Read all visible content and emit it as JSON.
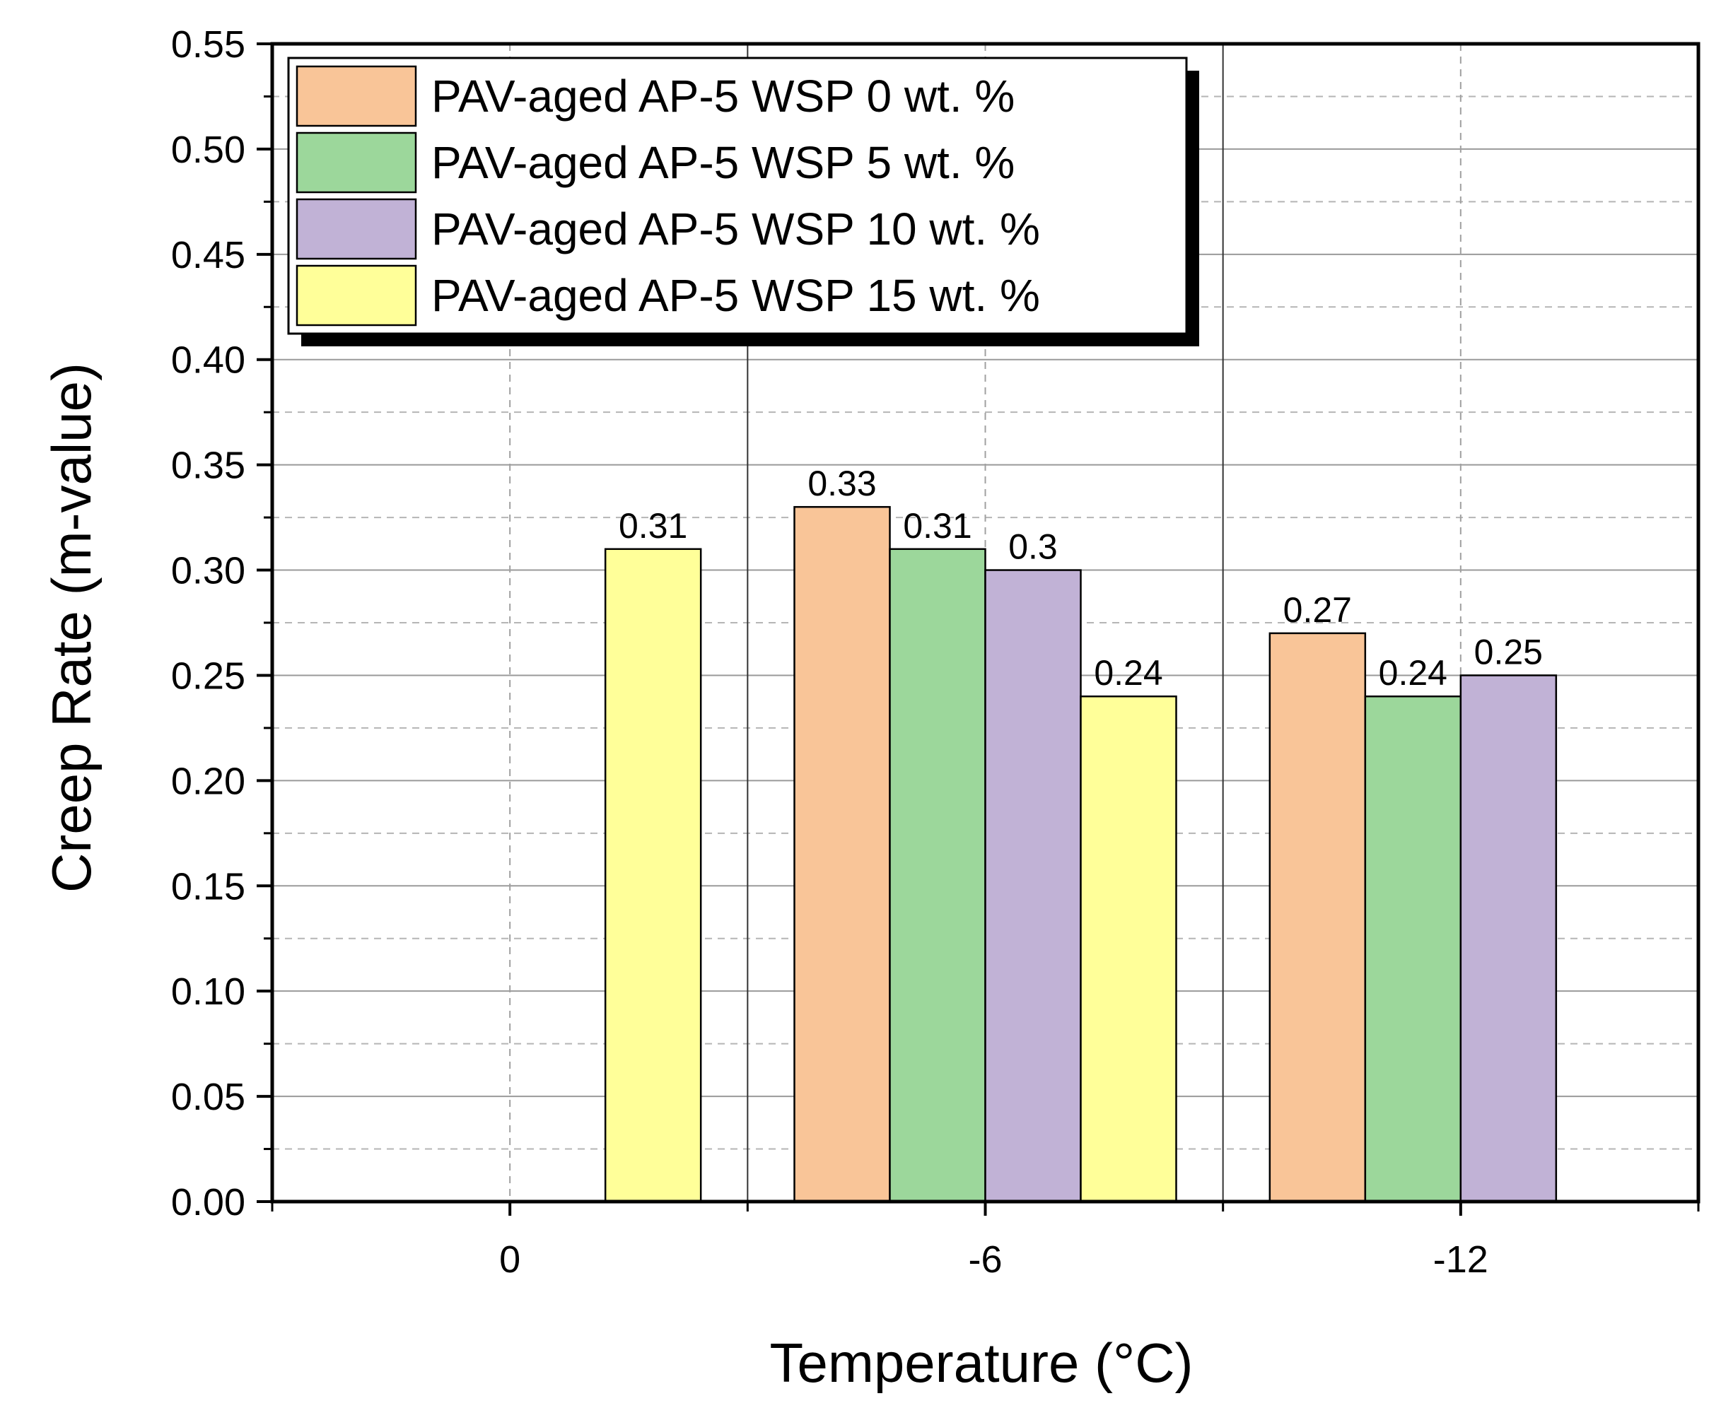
{
  "chart_data": {
    "type": "bar",
    "title": "",
    "xlabel": "Temperature (°C)",
    "ylabel": "Creep Rate (m-value)",
    "categories": [
      "0",
      "-6",
      "-12"
    ],
    "ylim": [
      0,
      0.55
    ],
    "y_ticks": [
      "0.00",
      "0.05",
      "0.10",
      "0.15",
      "0.20",
      "0.25",
      "0.30",
      "0.35",
      "0.40",
      "0.45",
      "0.50",
      "0.55"
    ],
    "grid": true,
    "legend_position": "top-left",
    "series": [
      {
        "name": "PAV-aged AP-5 WSP 0 wt. %",
        "color": "#F9C598",
        "values": [
          null,
          0.33,
          0.27
        ],
        "labels": [
          "",
          "0.33",
          "0.27"
        ]
      },
      {
        "name": "PAV-aged AP-5 WSP 5 wt. %",
        "color": "#9CD79B",
        "values": [
          null,
          0.31,
          0.24
        ],
        "labels": [
          "",
          "0.31",
          "0.24"
        ]
      },
      {
        "name": "PAV-aged AP-5 WSP 10 wt. %",
        "color": "#C1B2D6",
        "values": [
          null,
          0.3,
          0.25
        ],
        "labels": [
          "",
          "0.3",
          "0.25"
        ]
      },
      {
        "name": "PAV-aged AP-5 WSP 15 wt. %",
        "color": "#FFFF99",
        "values": [
          0.31,
          0.24,
          null
        ],
        "labels": [
          "0.31",
          "0.24",
          ""
        ]
      }
    ]
  }
}
